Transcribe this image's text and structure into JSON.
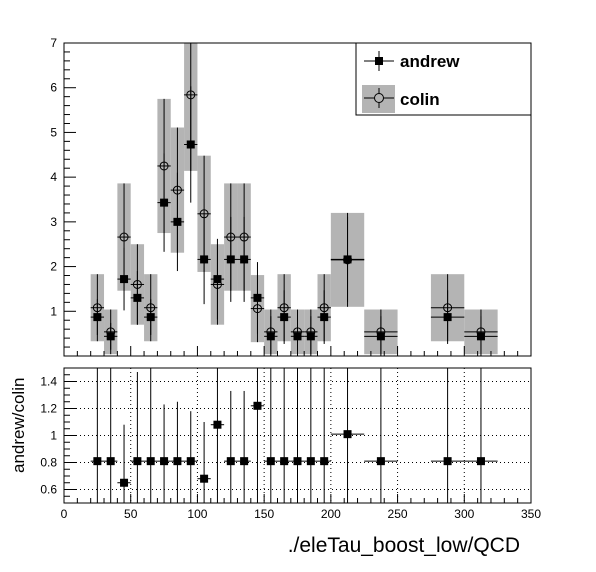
{
  "chart_data": [
    {
      "type": "scatter",
      "xlim": [
        0,
        350
      ],
      "ylim": [
        0,
        7
      ],
      "y_ticks": [
        "1",
        "2",
        "3",
        "4",
        "5",
        "6",
        "7"
      ],
      "grid": false,
      "legend_position": "top-right",
      "legend": [
        "andrew",
        "colin"
      ],
      "series": [
        {
          "name": "andrew",
          "marker": "filled-square",
          "color": "#000000",
          "points": [
            {
              "x": 25,
              "xerr": 5,
              "y": 0.87,
              "yerr": 0.4
            },
            {
              "x": 35,
              "xerr": 5,
              "y": 0.44,
              "yerr": 0.3
            },
            {
              "x": 45,
              "xerr": 5,
              "y": 1.72,
              "yerr": 0.7
            },
            {
              "x": 55,
              "xerr": 5,
              "y": 1.3,
              "yerr": 0.6
            },
            {
              "x": 65,
              "xerr": 5,
              "y": 0.87,
              "yerr": 0.4
            },
            {
              "x": 75,
              "xerr": 5,
              "y": 3.43,
              "yerr": 1.1
            },
            {
              "x": 85,
              "xerr": 5,
              "y": 3.0,
              "yerr": 1.1
            },
            {
              "x": 95,
              "xerr": 5,
              "y": 4.73,
              "yerr": 1.3
            },
            {
              "x": 105,
              "xerr": 5,
              "y": 2.16,
              "yerr": 1.0
            },
            {
              "x": 115,
              "xerr": 5,
              "y": 1.72,
              "yerr": 0.9
            },
            {
              "x": 125,
              "xerr": 5,
              "y": 2.16,
              "yerr": 0.95
            },
            {
              "x": 135,
              "xerr": 5,
              "y": 2.16,
              "yerr": 0.95
            },
            {
              "x": 145,
              "xerr": 5,
              "y": 1.3,
              "yerr": 0.8
            },
            {
              "x": 155,
              "xerr": 5,
              "y": 0.44,
              "yerr": 0.45
            },
            {
              "x": 165,
              "xerr": 5,
              "y": 0.87,
              "yerr": 0.6
            },
            {
              "x": 175,
              "xerr": 5,
              "y": 0.44,
              "yerr": 0.45
            },
            {
              "x": 185,
              "xerr": 5,
              "y": 0.44,
              "yerr": 0.45
            },
            {
              "x": 195,
              "xerr": 5,
              "y": 0.87,
              "yerr": 0.6
            },
            {
              "x": 212.5,
              "xerr": 12.5,
              "y": 2.16,
              "yerr": 0.95
            },
            {
              "x": 237.5,
              "xerr": 12.5,
              "y": 0.44,
              "yerr": 0.45
            },
            {
              "x": 287.5,
              "xerr": 12.5,
              "y": 0.87,
              "yerr": 0.6
            },
            {
              "x": 312.5,
              "xerr": 12.5,
              "y": 0.44,
              "yerr": 0.45
            }
          ]
        },
        {
          "name": "colin",
          "marker": "open-circle",
          "color": "#000000",
          "band_color": "#b4b4b4",
          "points": [
            {
              "x": 25,
              "xerr": 5,
              "y": 1.08,
              "yerr": 0.75
            },
            {
              "x": 35,
              "xerr": 5,
              "y": 0.54,
              "yerr": 0.5
            },
            {
              "x": 45,
              "xerr": 5,
              "y": 2.66,
              "yerr": 1.2
            },
            {
              "x": 55,
              "xerr": 5,
              "y": 1.6,
              "yerr": 0.9
            },
            {
              "x": 65,
              "xerr": 5,
              "y": 1.08,
              "yerr": 0.75
            },
            {
              "x": 75,
              "xerr": 5,
              "y": 4.25,
              "yerr": 1.5
            },
            {
              "x": 85,
              "xerr": 5,
              "y": 3.71,
              "yerr": 1.4
            },
            {
              "x": 95,
              "xerr": 5,
              "y": 5.84,
              "yerr": 1.7
            },
            {
              "x": 105,
              "xerr": 5,
              "y": 3.18,
              "yerr": 1.3
            },
            {
              "x": 115,
              "xerr": 5,
              "y": 1.6,
              "yerr": 0.9
            },
            {
              "x": 125,
              "xerr": 5,
              "y": 2.66,
              "yerr": 1.2
            },
            {
              "x": 135,
              "xerr": 5,
              "y": 2.66,
              "yerr": 1.2
            },
            {
              "x": 145,
              "xerr": 5,
              "y": 1.06,
              "yerr": 0.75
            },
            {
              "x": 155,
              "xerr": 5,
              "y": 0.54,
              "yerr": 0.5
            },
            {
              "x": 165,
              "xerr": 5,
              "y": 1.08,
              "yerr": 0.75
            },
            {
              "x": 175,
              "xerr": 5,
              "y": 0.54,
              "yerr": 0.5
            },
            {
              "x": 185,
              "xerr": 5,
              "y": 0.54,
              "yerr": 0.5
            },
            {
              "x": 195,
              "xerr": 5,
              "y": 1.08,
              "yerr": 0.75
            },
            {
              "x": 212.5,
              "xerr": 12.5,
              "y": 2.15,
              "yerr": 1.05
            },
            {
              "x": 237.5,
              "xerr": 12.5,
              "y": 0.54,
              "yerr": 0.5
            },
            {
              "x": 287.5,
              "xerr": 12.5,
              "y": 1.08,
              "yerr": 0.75
            },
            {
              "x": 312.5,
              "xerr": 12.5,
              "y": 0.54,
              "yerr": 0.5
            }
          ]
        }
      ]
    },
    {
      "type": "scatter",
      "xlabel": "./eleTau_boost_low/QCD",
      "ylabel": "andrew/colin",
      "xlim": [
        0,
        350
      ],
      "ylim": [
        0.5,
        1.5
      ],
      "x_ticks": [
        "0",
        "50",
        "100",
        "150",
        "200",
        "250",
        "300",
        "350"
      ],
      "y_ticks": [
        "0.6",
        "0.8",
        "1",
        "1.2",
        "1.4"
      ],
      "grid": true,
      "points": [
        {
          "x": 25,
          "xerr": 5,
          "y": 0.81
        },
        {
          "x": 35,
          "xerr": 5,
          "y": 0.81
        },
        {
          "x": 45,
          "xerr": 5,
          "y": 0.65
        },
        {
          "x": 55,
          "xerr": 5,
          "y": 0.81
        },
        {
          "x": 65,
          "xerr": 5,
          "y": 0.81
        },
        {
          "x": 75,
          "xerr": 5,
          "y": 0.81
        },
        {
          "x": 85,
          "xerr": 5,
          "y": 0.81
        },
        {
          "x": 95,
          "xerr": 5,
          "y": 0.81
        },
        {
          "x": 105,
          "xerr": 5,
          "y": 0.68
        },
        {
          "x": 115,
          "xerr": 5,
          "y": 1.08
        },
        {
          "x": 125,
          "xerr": 5,
          "y": 0.81
        },
        {
          "x": 135,
          "xerr": 5,
          "y": 0.81
        },
        {
          "x": 145,
          "xerr": 5,
          "y": 1.22
        },
        {
          "x": 155,
          "xerr": 5,
          "y": 0.81
        },
        {
          "x": 165,
          "xerr": 5,
          "y": 0.81
        },
        {
          "x": 175,
          "xerr": 5,
          "y": 0.81
        },
        {
          "x": 185,
          "xerr": 5,
          "y": 0.81
        },
        {
          "x": 195,
          "xerr": 5,
          "y": 0.81
        },
        {
          "x": 212.5,
          "xerr": 12.5,
          "y": 1.01
        },
        {
          "x": 237.5,
          "xerr": 12.5,
          "y": 0.81
        },
        {
          "x": 287.5,
          "xerr": 12.5,
          "y": 0.81
        },
        {
          "x": 312.5,
          "xerr": 12.5,
          "y": 0.81
        }
      ],
      "ratio_errors": [
        {
          "x": 25,
          "lo": 0.5,
          "hi": 1.5
        },
        {
          "x": 35,
          "lo": 0.5,
          "hi": 1.5
        },
        {
          "x": 45,
          "lo": 0.5,
          "hi": 1.08
        },
        {
          "x": 55,
          "lo": 0.5,
          "hi": 1.47
        },
        {
          "x": 65,
          "lo": 0.5,
          "hi": 1.5
        },
        {
          "x": 75,
          "lo": 0.5,
          "hi": 1.23
        },
        {
          "x": 85,
          "lo": 0.5,
          "hi": 1.25
        },
        {
          "x": 95,
          "lo": 0.5,
          "hi": 1.18
        },
        {
          "x": 105,
          "lo": 0.5,
          "hi": 1.1
        },
        {
          "x": 115,
          "lo": 0.5,
          "hi": 1.5
        },
        {
          "x": 125,
          "lo": 0.5,
          "hi": 1.33
        },
        {
          "x": 135,
          "lo": 0.5,
          "hi": 1.33
        },
        {
          "x": 145,
          "lo": 0.5,
          "hi": 1.5
        },
        {
          "x": 155,
          "lo": 0.5,
          "hi": 1.5
        },
        {
          "x": 165,
          "lo": 0.5,
          "hi": 1.5
        },
        {
          "x": 175,
          "lo": 0.5,
          "hi": 1.5
        },
        {
          "x": 185,
          "lo": 0.5,
          "hi": 1.5
        },
        {
          "x": 195,
          "lo": 0.5,
          "hi": 1.5
        },
        {
          "x": 212.5,
          "lo": 0.5,
          "hi": 1.5
        },
        {
          "x": 237.5,
          "lo": 0.5,
          "hi": 1.5
        },
        {
          "x": 287.5,
          "lo": 0.5,
          "hi": 1.5
        },
        {
          "x": 312.5,
          "lo": 0.5,
          "hi": 1.5
        }
      ]
    }
  ]
}
